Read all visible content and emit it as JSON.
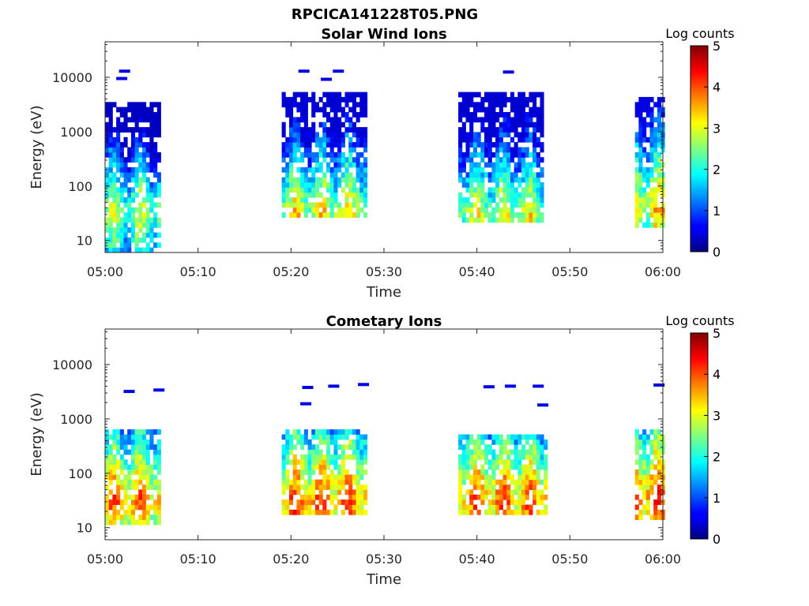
{
  "figure_title": "RPCICA141228T05.PNG",
  "chart_data": [
    {
      "type": "heatmap",
      "title": "Solar Wind Ions",
      "xlabel": "Time",
      "ylabel": "Energy (eV)",
      "xticks": [
        "05:00",
        "05:10",
        "05:20",
        "05:30",
        "05:40",
        "05:50",
        "06:00"
      ],
      "xlim_minutes": [
        0,
        60
      ],
      "yscale": "log",
      "ylim": [
        6,
        45000
      ],
      "yticks": [
        10,
        100,
        1000,
        10000
      ],
      "ytick_labels": [
        "10",
        "100",
        "1000",
        "10000"
      ],
      "colorbar": {
        "label": "Log counts",
        "range": [
          0,
          5
        ],
        "ticks": [
          "0",
          "1",
          "2",
          "3",
          "4",
          "5"
        ]
      },
      "series": [
        {
          "start_min": 0.0,
          "end_min": 6.0,
          "emin": 6,
          "emax": 3800,
          "peak_energy": 30,
          "peak_level": 2.6,
          "base_level": 0.8
        },
        {
          "start_min": 19.0,
          "end_min": 28.0,
          "emin": 25,
          "emax": 5000,
          "peak_energy": 30,
          "peak_level": 3.0,
          "base_level": 1.0
        },
        {
          "start_min": 38.0,
          "end_min": 47.0,
          "emin": 20,
          "emax": 5000,
          "peak_energy": 30,
          "peak_level": 2.8,
          "base_level": 1.0
        },
        {
          "start_min": 57.0,
          "end_min": 60.0,
          "emin": 18,
          "emax": 4500,
          "peak_energy": 40,
          "peak_level": 3.2,
          "base_level": 1.2
        }
      ],
      "high_energy_flecks": [
        {
          "t_min": 1.5,
          "e": 13000
        },
        {
          "t_min": 1.2,
          "e": 9500
        },
        {
          "t_min": 20.8,
          "e": 13000
        },
        {
          "t_min": 23.2,
          "e": 9200
        },
        {
          "t_min": 24.5,
          "e": 13000
        },
        {
          "t_min": 42.8,
          "e": 12500
        }
      ]
    },
    {
      "type": "heatmap",
      "title": "Cometary Ions",
      "xlabel": "Time",
      "ylabel": "Energy (eV)",
      "xticks": [
        "05:00",
        "05:10",
        "05:20",
        "05:30",
        "05:40",
        "05:50",
        "06:00"
      ],
      "xlim_minutes": [
        0,
        60
      ],
      "yscale": "log",
      "ylim": [
        6,
        45000
      ],
      "yticks": [
        10,
        100,
        1000,
        10000
      ],
      "ytick_labels": [
        "10",
        "100",
        "1000",
        "10000"
      ],
      "colorbar": {
        "label": "Log counts",
        "range": [
          0,
          5
        ],
        "ticks": [
          "0",
          "1",
          "2",
          "3",
          "4",
          "5"
        ]
      },
      "series": [
        {
          "start_min": 0.0,
          "end_min": 5.8,
          "emin": 12,
          "emax": 650,
          "peak_energy": 30,
          "peak_level": 3.6,
          "base_level": 1.8
        },
        {
          "start_min": 19.0,
          "end_min": 28.0,
          "emin": 18,
          "emax": 600,
          "peak_energy": 30,
          "peak_level": 3.8,
          "base_level": 2.0
        },
        {
          "start_min": 38.0,
          "end_min": 47.5,
          "emin": 18,
          "emax": 550,
          "peak_energy": 32,
          "peak_level": 3.7,
          "base_level": 2.0
        },
        {
          "start_min": 57.0,
          "end_min": 60.0,
          "emin": 15,
          "emax": 600,
          "peak_energy": 35,
          "peak_level": 3.9,
          "base_level": 2.1
        }
      ],
      "high_energy_flecks": [
        {
          "t_min": 2.0,
          "e": 3200
        },
        {
          "t_min": 5.2,
          "e": 3400
        },
        {
          "t_min": 21.2,
          "e": 3800
        },
        {
          "t_min": 24.0,
          "e": 4000
        },
        {
          "t_min": 27.2,
          "e": 4300
        },
        {
          "t_min": 21.0,
          "e": 1900
        },
        {
          "t_min": 40.7,
          "e": 3900
        },
        {
          "t_min": 43.0,
          "e": 4000
        },
        {
          "t_min": 46.0,
          "e": 4000
        },
        {
          "t_min": 46.5,
          "e": 1800
        },
        {
          "t_min": 59.0,
          "e": 4200
        }
      ]
    }
  ]
}
